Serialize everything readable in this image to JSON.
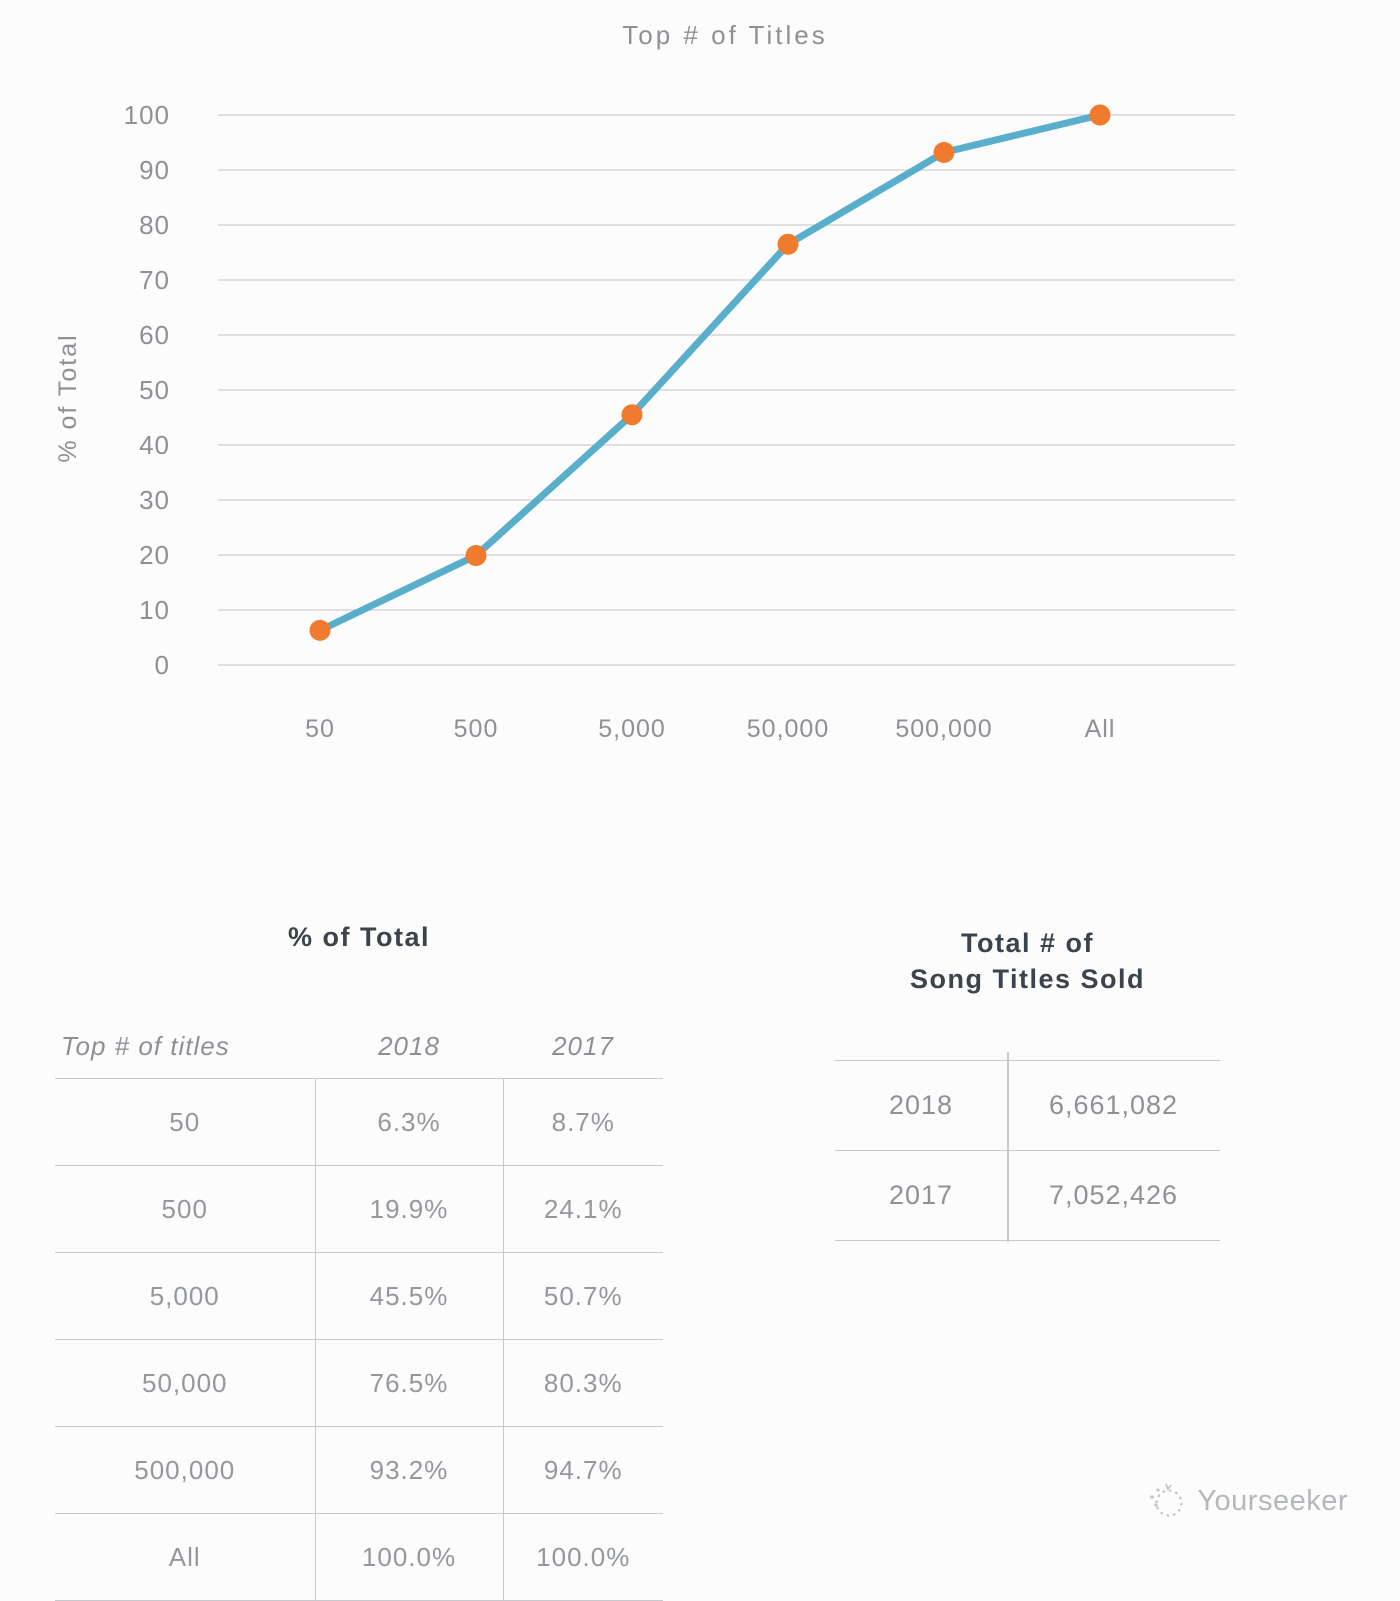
{
  "chart": {
    "title": "Top # of Titles",
    "y_axis_label": "% of Total",
    "plotted_series": "2018",
    "line_color": "#58AECB",
    "point_color": "#EE7B2E",
    "grid_color": "#d7d7d7",
    "text_color": "#8d9195"
  },
  "chart_data": {
    "type": "line",
    "title": "Top # of Titles",
    "xlabel": "Top # of titles",
    "ylabel": "% of Total",
    "categories": [
      "50",
      "500",
      "5,000",
      "50,000",
      "500,000",
      "All"
    ],
    "series": [
      {
        "name": "2018",
        "values": [
          6.3,
          19.9,
          45.5,
          76.5,
          93.2,
          100.0
        ]
      },
      {
        "name": "2017",
        "values": [
          8.7,
          24.1,
          50.7,
          80.3,
          94.7,
          100.0
        ]
      }
    ],
    "plotted": "2018",
    "ylim": [
      0,
      100
    ],
    "y_ticks": [
      0,
      10,
      20,
      30,
      40,
      50,
      60,
      70,
      80,
      90,
      100
    ],
    "grid": true,
    "legend": "none"
  },
  "percent_table": {
    "title": "% of Total",
    "columns": [
      "Top # of titles",
      "2018",
      "2017"
    ],
    "rows": [
      [
        "50",
        "6.3%",
        "8.7%"
      ],
      [
        "500",
        "19.9%",
        "24.1%"
      ],
      [
        "5,000",
        "45.5%",
        "50.7%"
      ],
      [
        "50,000",
        "76.5%",
        "80.3%"
      ],
      [
        "500,000",
        "93.2%",
        "94.7%"
      ],
      [
        "All",
        "100.0%",
        "100.0%"
      ]
    ]
  },
  "sold_table": {
    "title_line1": "Total # of",
    "title_line2": "Song Titles Sold",
    "rows": [
      [
        "2018",
        "6,661,082"
      ],
      [
        "2017",
        "7,052,426"
      ]
    ]
  },
  "watermark": {
    "label": "Yourseeker"
  }
}
